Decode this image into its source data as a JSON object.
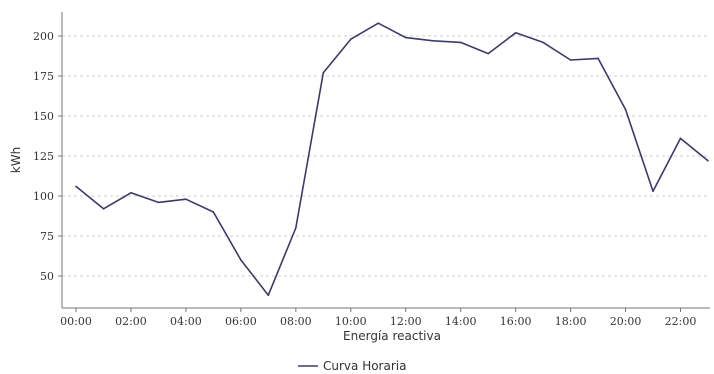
{
  "chart_data": {
    "type": "line",
    "xlabel": "Energía reactiva",
    "ylabel": "kWh",
    "x": [
      "00:00",
      "01:00",
      "02:00",
      "03:00",
      "04:00",
      "05:00",
      "06:00",
      "07:00",
      "08:00",
      "09:00",
      "10:00",
      "11:00",
      "12:00",
      "13:00",
      "14:00",
      "15:00",
      "16:00",
      "17:00",
      "18:00",
      "19:00",
      "20:00",
      "21:00",
      "22:00",
      "23:00"
    ],
    "x_tick_labels": [
      "00:00",
      "02:00",
      "04:00",
      "06:00",
      "08:00",
      "10:00",
      "12:00",
      "14:00",
      "16:00",
      "18:00",
      "20:00",
      "22:00"
    ],
    "y_ticks": [
      50,
      75,
      100,
      125,
      150,
      175,
      200
    ],
    "ylim": [
      30,
      215
    ],
    "grid": true,
    "legend_position": "bottom-center",
    "series": [
      {
        "name": "Curva Horaria",
        "color": "#3b3b6b",
        "values": [
          106,
          92,
          102,
          96,
          98,
          90,
          60,
          38,
          80,
          177,
          198,
          208,
          199,
          197,
          196,
          189,
          202,
          196,
          185,
          186,
          154,
          103,
          136,
          122
        ]
      }
    ]
  }
}
